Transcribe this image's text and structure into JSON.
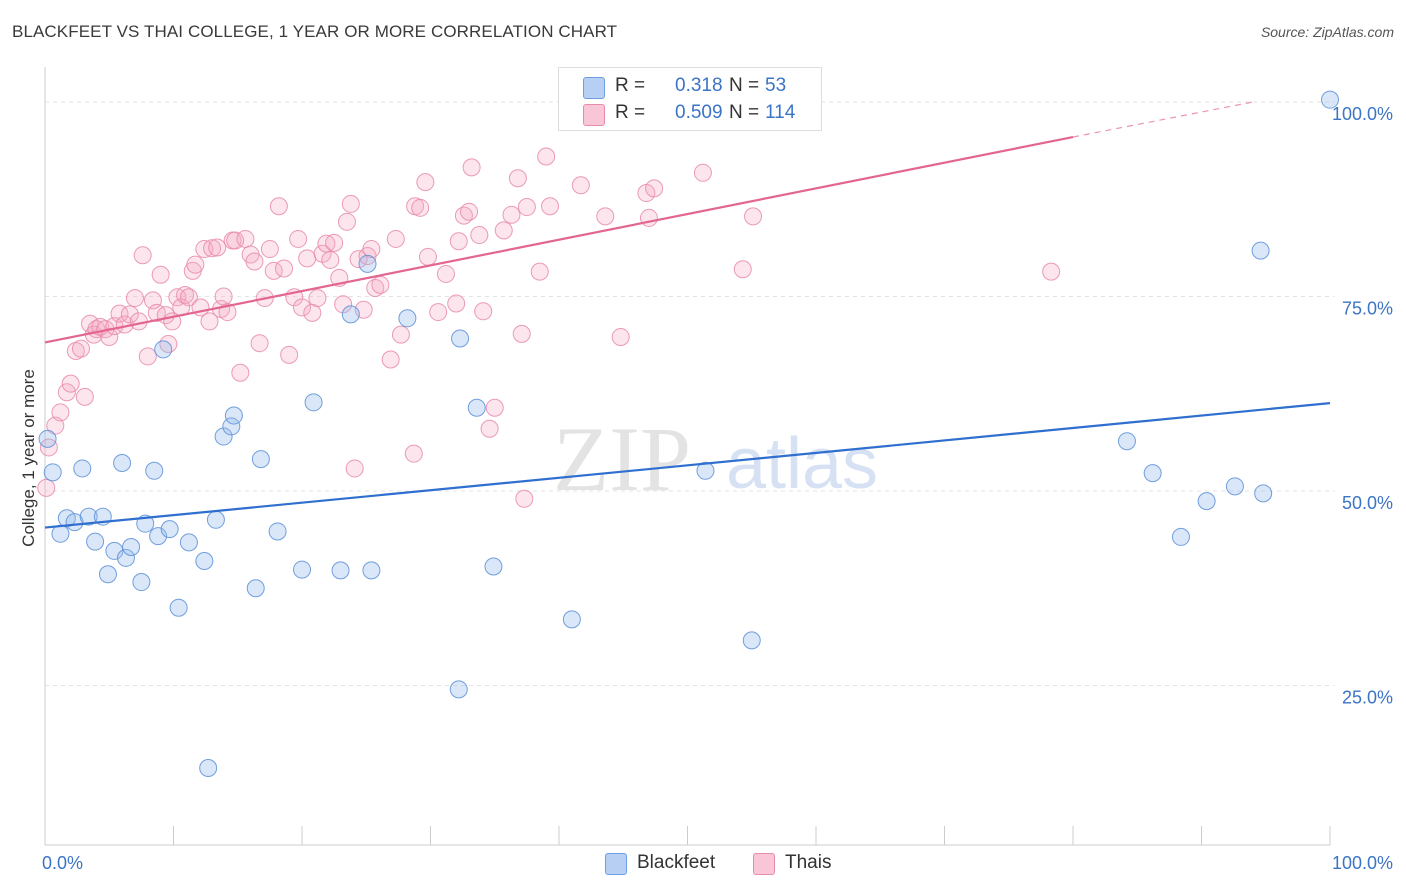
{
  "header": {
    "title": "BLACKFEET VS THAI COLLEGE, 1 YEAR OR MORE CORRELATION CHART",
    "source": "Source: ZipAtlas.com"
  },
  "watermark": {
    "zip": "ZIP",
    "atlas": "atlas"
  },
  "legend": {
    "series": [
      {
        "name": "Blackfeet",
        "r_label": "R =",
        "r_value": "0.318",
        "n_label": "N =",
        "n_value": "53",
        "fill": "#b7cff2",
        "stroke": "#6f9ee0"
      },
      {
        "name": "Thais",
        "r_label": "R =",
        "r_value": "0.509",
        "n_label": "N =",
        "n_value": "114",
        "fill": "#f9c6d7",
        "stroke": "#e88aab"
      }
    ]
  },
  "colors": {
    "blackfeet_fill": "rgba(150,185,235,0.35)",
    "blackfeet_stroke": "#5a8fd8",
    "blackfeet_line": "#2f6fcf",
    "thais_fill": "rgba(245,170,195,0.30)",
    "thais_stroke": "#e88aab",
    "thais_line": "#e36690",
    "axis_label": "#3b74c6",
    "grid": "#e3e3e3"
  },
  "chart_data": {
    "type": "scatter",
    "title": "BLACKFEET VS THAI COLLEGE, 1 YEAR OR MORE CORRELATION CHART",
    "xlabel": "",
    "ylabel": "College, 1 year or more",
    "xlim": [
      0,
      1
    ],
    "ylim": [
      0.045,
      1.045
    ],
    "x_tick_labels": [
      "0.0%",
      "100.0%"
    ],
    "y_ticks": [
      0.25,
      0.5,
      0.75,
      1.0
    ],
    "y_tick_labels": [
      "25.0%",
      "50.0%",
      "75.0%",
      "100.0%"
    ],
    "grid": true,
    "legend_position": "top-center",
    "series": [
      {
        "name": "Blackfeet",
        "r": 0.318,
        "n": 53,
        "trend": {
          "x0": 0.0,
          "y0": 0.453,
          "x1": 1.0,
          "y1": 0.613
        },
        "points": [
          [
            0.002,
            0.567
          ],
          [
            0.006,
            0.524
          ],
          [
            0.012,
            0.445
          ],
          [
            0.017,
            0.465
          ],
          [
            0.023,
            0.46
          ],
          [
            0.029,
            0.529
          ],
          [
            0.034,
            0.467
          ],
          [
            0.039,
            0.435
          ],
          [
            0.045,
            0.467
          ],
          [
            0.049,
            0.393
          ],
          [
            0.054,
            0.423
          ],
          [
            0.06,
            0.536
          ],
          [
            0.063,
            0.414
          ],
          [
            0.067,
            0.428
          ],
          [
            0.075,
            0.383
          ],
          [
            0.078,
            0.458
          ],
          [
            0.085,
            0.526
          ],
          [
            0.088,
            0.442
          ],
          [
            0.092,
            0.682
          ],
          [
            0.097,
            0.451
          ],
          [
            0.104,
            0.35
          ],
          [
            0.112,
            0.434
          ],
          [
            0.124,
            0.41
          ],
          [
            0.133,
            0.463
          ],
          [
            0.139,
            0.57
          ],
          [
            0.145,
            0.583
          ],
          [
            0.147,
            0.597
          ],
          [
            0.164,
            0.375
          ],
          [
            0.168,
            0.541
          ],
          [
            0.181,
            0.448
          ],
          [
            0.2,
            0.399
          ],
          [
            0.209,
            0.614
          ],
          [
            0.23,
            0.398
          ],
          [
            0.238,
            0.727
          ],
          [
            0.251,
            0.792
          ],
          [
            0.254,
            0.398
          ],
          [
            0.282,
            0.722
          ],
          [
            0.322,
            0.245
          ],
          [
            0.323,
            0.696
          ],
          [
            0.336,
            0.607
          ],
          [
            0.349,
            0.403
          ],
          [
            0.41,
            0.335
          ],
          [
            0.514,
            0.526
          ],
          [
            0.55,
            0.308
          ],
          [
            1.0,
            1.003
          ],
          [
            0.946,
            0.809
          ],
          [
            0.842,
            0.564
          ],
          [
            0.862,
            0.523
          ],
          [
            0.884,
            0.441
          ],
          [
            0.904,
            0.487
          ],
          [
            0.926,
            0.506
          ],
          [
            0.948,
            0.497
          ],
          [
            0.127,
            0.144
          ]
        ]
      },
      {
        "name": "Thais",
        "r": 0.509,
        "n": 114,
        "trend": {
          "x0": 0.0,
          "y0": 0.691,
          "x1": 0.8,
          "y1": 0.955,
          "dash_to_x": 0.94,
          "dash_to_y": 1.0
        },
        "points": [
          [
            0.001,
            0.504
          ],
          [
            0.003,
            0.556
          ],
          [
            0.008,
            0.584
          ],
          [
            0.012,
            0.601
          ],
          [
            0.017,
            0.627
          ],
          [
            0.02,
            0.638
          ],
          [
            0.024,
            0.68
          ],
          [
            0.028,
            0.683
          ],
          [
            0.031,
            0.621
          ],
          [
            0.035,
            0.715
          ],
          [
            0.038,
            0.701
          ],
          [
            0.04,
            0.708
          ],
          [
            0.043,
            0.711
          ],
          [
            0.047,
            0.708
          ],
          [
            0.05,
            0.698
          ],
          [
            0.054,
            0.712
          ],
          [
            0.058,
            0.728
          ],
          [
            0.062,
            0.714
          ],
          [
            0.066,
            0.727
          ],
          [
            0.07,
            0.748
          ],
          [
            0.073,
            0.718
          ],
          [
            0.076,
            0.803
          ],
          [
            0.08,
            0.673
          ],
          [
            0.084,
            0.745
          ],
          [
            0.087,
            0.729
          ],
          [
            0.09,
            0.778
          ],
          [
            0.094,
            0.726
          ],
          [
            0.096,
            0.689
          ],
          [
            0.099,
            0.718
          ],
          [
            0.103,
            0.749
          ],
          [
            0.106,
            0.736
          ],
          [
            0.109,
            0.752
          ],
          [
            0.112,
            0.749
          ],
          [
            0.115,
            0.783
          ],
          [
            0.117,
            0.791
          ],
          [
            0.121,
            0.736
          ],
          [
            0.124,
            0.811
          ],
          [
            0.128,
            0.718
          ],
          [
            0.13,
            0.812
          ],
          [
            0.134,
            0.813
          ],
          [
            0.137,
            0.734
          ],
          [
            0.139,
            0.75
          ],
          [
            0.142,
            0.73
          ],
          [
            0.146,
            0.822
          ],
          [
            0.148,
            0.822
          ],
          [
            0.152,
            0.652
          ],
          [
            0.156,
            0.824
          ],
          [
            0.16,
            0.804
          ],
          [
            0.163,
            0.795
          ],
          [
            0.167,
            0.69
          ],
          [
            0.171,
            0.748
          ],
          [
            0.175,
            0.811
          ],
          [
            0.178,
            0.783
          ],
          [
            0.182,
            0.866
          ],
          [
            0.186,
            0.786
          ],
          [
            0.19,
            0.675
          ],
          [
            0.194,
            0.749
          ],
          [
            0.197,
            0.824
          ],
          [
            0.2,
            0.736
          ],
          [
            0.204,
            0.799
          ],
          [
            0.208,
            0.729
          ],
          [
            0.212,
            0.748
          ],
          [
            0.216,
            0.805
          ],
          [
            0.219,
            0.818
          ],
          [
            0.222,
            0.797
          ],
          [
            0.225,
            0.819
          ],
          [
            0.229,
            0.774
          ],
          [
            0.232,
            0.74
          ],
          [
            0.235,
            0.846
          ],
          [
            0.238,
            0.869
          ],
          [
            0.241,
            0.529
          ],
          [
            0.244,
            0.798
          ],
          [
            0.248,
            0.733
          ],
          [
            0.251,
            0.802
          ],
          [
            0.254,
            0.811
          ],
          [
            0.257,
            0.761
          ],
          [
            0.261,
            0.765
          ],
          [
            0.269,
            0.669
          ],
          [
            0.273,
            0.824
          ],
          [
            0.277,
            0.701
          ],
          [
            0.287,
            0.548
          ],
          [
            0.288,
            0.866
          ],
          [
            0.292,
            0.864
          ],
          [
            0.296,
            0.897
          ],
          [
            0.298,
            0.801
          ],
          [
            0.306,
            0.73
          ],
          [
            0.312,
            0.779
          ],
          [
            0.32,
            0.741
          ],
          [
            0.322,
            0.821
          ],
          [
            0.326,
            0.854
          ],
          [
            0.33,
            0.859
          ],
          [
            0.332,
            0.916
          ],
          [
            0.338,
            0.829
          ],
          [
            0.341,
            0.731
          ],
          [
            0.346,
            0.58
          ],
          [
            0.35,
            0.607
          ],
          [
            0.357,
            0.835
          ],
          [
            0.363,
            0.855
          ],
          [
            0.371,
            0.702
          ],
          [
            0.368,
            0.902
          ],
          [
            0.373,
            0.49
          ],
          [
            0.375,
            0.865
          ],
          [
            0.385,
            0.782
          ],
          [
            0.39,
            0.93
          ],
          [
            0.393,
            0.866
          ],
          [
            0.417,
            0.893
          ],
          [
            0.436,
            0.853
          ],
          [
            0.448,
            0.698
          ],
          [
            0.468,
            0.883
          ],
          [
            0.47,
            0.851
          ],
          [
            0.474,
            0.889
          ],
          [
            0.512,
            0.909
          ],
          [
            0.543,
            0.785
          ],
          [
            0.551,
            0.853
          ],
          [
            0.783,
            0.782
          ]
        ]
      }
    ]
  }
}
